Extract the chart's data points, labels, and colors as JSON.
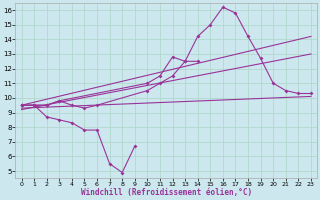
{
  "xlabel": "Windchill (Refroidissement éolien,°C)",
  "background_color": "#cce8ee",
  "grid_color": "#b0d8cc",
  "line_color": "#993399",
  "xlim": [
    -0.5,
    23.5
  ],
  "ylim": [
    4.5,
    16.5
  ],
  "xticks": [
    0,
    1,
    2,
    3,
    4,
    5,
    6,
    7,
    8,
    9,
    10,
    11,
    12,
    13,
    14,
    15,
    16,
    17,
    18,
    19,
    20,
    21,
    22,
    23
  ],
  "yticks": [
    5,
    6,
    7,
    8,
    9,
    10,
    11,
    12,
    13,
    14,
    15,
    16
  ],
  "series1_x": [
    0,
    1,
    2,
    3,
    4,
    5,
    6,
    7,
    8,
    9
  ],
  "series1_y": [
    9.5,
    9.5,
    8.7,
    8.5,
    8.3,
    7.8,
    7.8,
    5.5,
    4.9,
    6.7
  ],
  "series2_x": [
    0,
    1,
    2,
    3,
    4,
    5,
    6,
    10,
    11,
    12,
    13,
    14
  ],
  "series2_y": [
    9.5,
    9.5,
    9.5,
    9.8,
    9.5,
    9.3,
    9.5,
    10.5,
    11.0,
    11.5,
    12.5,
    12.5
  ],
  "series3_x": [
    0,
    2,
    3,
    10,
    11,
    12,
    13,
    14,
    15,
    16,
    17,
    18,
    19,
    20,
    21,
    22,
    23
  ],
  "series3_y": [
    9.5,
    9.5,
    9.8,
    11.0,
    11.5,
    12.8,
    12.5,
    14.2,
    15.0,
    16.2,
    15.8,
    14.2,
    12.7,
    11.0,
    10.5,
    10.3,
    10.3
  ],
  "line1_x": [
    0,
    23
  ],
  "line1_y": [
    9.3,
    10.1
  ],
  "line2_x": [
    0,
    23
  ],
  "line2_y": [
    9.5,
    14.2
  ],
  "line3_x": [
    0,
    23
  ],
  "line3_y": [
    9.2,
    13.0
  ]
}
